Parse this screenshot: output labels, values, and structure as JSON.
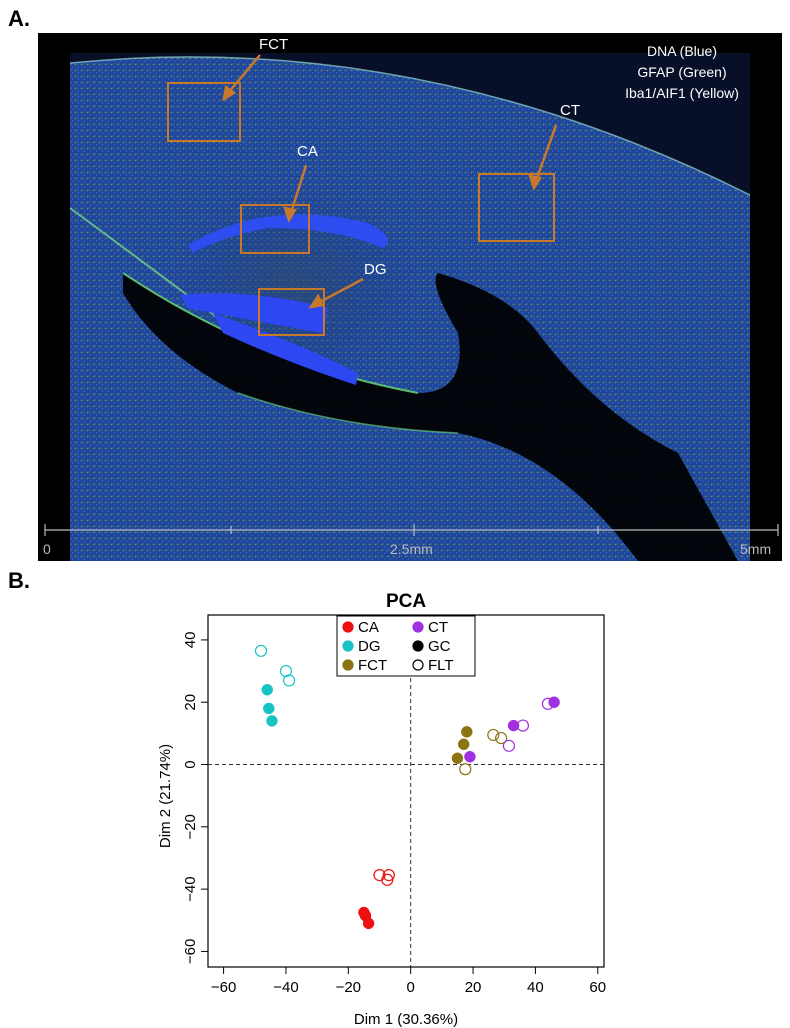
{
  "panels": {
    "a_label": "A.",
    "b_label": "B."
  },
  "micrograph": {
    "legend": [
      "DNA (Blue)",
      "GFAP (Green)",
      "Iba1/AIF1 (Yellow)"
    ],
    "regions": [
      "FCT",
      "CT",
      "CA",
      "DG"
    ],
    "box_color": "#c8782a",
    "scale_labels": [
      "0",
      "2.5mm",
      "5mm"
    ]
  },
  "chart_data": {
    "type": "scatter",
    "title": "PCA",
    "xlabel": "Dim 1 (30.36%)",
    "ylabel": "Dim 2 (21.74%)",
    "xlim": [
      -65,
      62
    ],
    "ylim": [
      -65,
      48
    ],
    "xticks": [
      -60,
      -40,
      -20,
      0,
      20,
      40,
      60
    ],
    "yticks": [
      -60,
      -40,
      -20,
      0,
      20,
      40
    ],
    "grid": false,
    "reference_lines": {
      "x": 0,
      "y": 0
    },
    "legend_position": "top-center",
    "series": [
      {
        "name": "CA",
        "color": "#ee1111",
        "filled": true,
        "points": [
          [
            -15,
            -47.5
          ],
          [
            -14.5,
            -48.5
          ],
          [
            -13.5,
            -51
          ]
        ]
      },
      {
        "name": "CT",
        "color": "#a030e0",
        "filled": true,
        "points": [
          [
            19,
            2.5
          ],
          [
            33,
            12.5
          ],
          [
            46,
            20
          ]
        ]
      },
      {
        "name": "DG",
        "color": "#17c4c4",
        "filled": true,
        "points": [
          [
            -46,
            24
          ],
          [
            -45.5,
            18
          ],
          [
            -44.5,
            14
          ]
        ]
      },
      {
        "name": "GC",
        "color": "#000000",
        "filled": true,
        "points": []
      },
      {
        "name": "FCT",
        "color": "#8b7512",
        "filled": true,
        "points": [
          [
            15,
            2
          ],
          [
            17,
            6.5
          ],
          [
            18,
            10.5
          ]
        ]
      },
      {
        "name": "FLT",
        "color": "#000000",
        "filled": false,
        "points": []
      },
      {
        "name": "CA",
        "color": "#ee1111",
        "filled": false,
        "legend": false,
        "points": [
          [
            -10,
            -35.5
          ],
          [
            -7.5,
            -37
          ],
          [
            -7,
            -35.5
          ]
        ]
      },
      {
        "name": "DG",
        "color": "#17c4c4",
        "filled": false,
        "legend": false,
        "points": [
          [
            -48,
            36.5
          ],
          [
            -40,
            30
          ],
          [
            -39,
            27
          ]
        ]
      },
      {
        "name": "FCT",
        "color": "#8b7512",
        "filled": false,
        "legend": false,
        "points": [
          [
            17.5,
            -1.5
          ],
          [
            26.5,
            9.5
          ],
          [
            29,
            8.5
          ]
        ]
      },
      {
        "name": "CT",
        "color": "#a030e0",
        "filled": false,
        "legend": false,
        "points": [
          [
            31.5,
            6
          ],
          [
            36,
            12.5
          ],
          [
            44,
            19.5
          ]
        ]
      }
    ]
  }
}
